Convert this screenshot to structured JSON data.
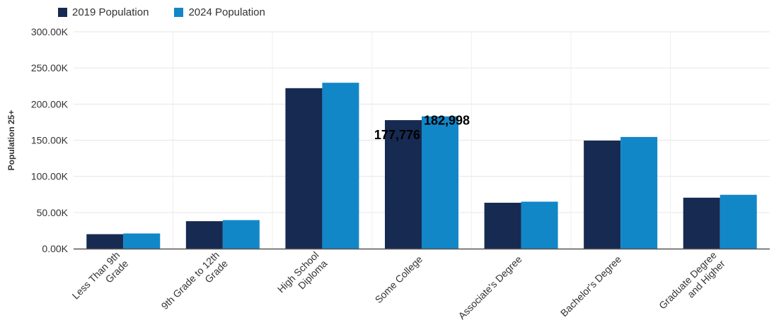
{
  "legend": [
    {
      "name": "2019 Population",
      "color": "#172A51"
    },
    {
      "name": "2024 Population",
      "color": "#1287C8"
    }
  ],
  "chart_data": {
    "type": "bar",
    "categories": [
      [
        "Less Than 9th",
        "Grade"
      ],
      [
        "9th Grade to 12th",
        "Grade"
      ],
      [
        "High School",
        "Diploma"
      ],
      [
        "Some College"
      ],
      [
        "Associate's Degree"
      ],
      [
        "Bachelor's Degree"
      ],
      [
        "Graduate Degree",
        "and Higher"
      ]
    ],
    "series": [
      {
        "name": "2019 Population",
        "color": "#172A51",
        "values": [
          20000,
          38000,
          222000,
          177776,
          63500,
          149500,
          70500
        ]
      },
      {
        "name": "2024 Population",
        "color": "#1287C8",
        "values": [
          21000,
          39500,
          229500,
          182998,
          65000,
          154500,
          74500
        ]
      }
    ],
    "ylabel": "Population 25+",
    "ylim": [
      0,
      300000
    ],
    "yticks": [
      {
        "value": 0,
        "label": "0.00K"
      },
      {
        "value": 50000,
        "label": "50.00K"
      },
      {
        "value": 100000,
        "label": "100.00K"
      },
      {
        "value": 150000,
        "label": "150.00K"
      },
      {
        "value": 200000,
        "label": "200.00K"
      },
      {
        "value": 250000,
        "label": "250.00K"
      },
      {
        "value": 300000,
        "label": "300.00K"
      }
    ],
    "data_labels": [
      {
        "series": 0,
        "category": 3,
        "text": "177,776"
      },
      {
        "series": 1,
        "category": 3,
        "text": "182,998"
      }
    ],
    "grid": true,
    "legend_position": "top-left"
  }
}
